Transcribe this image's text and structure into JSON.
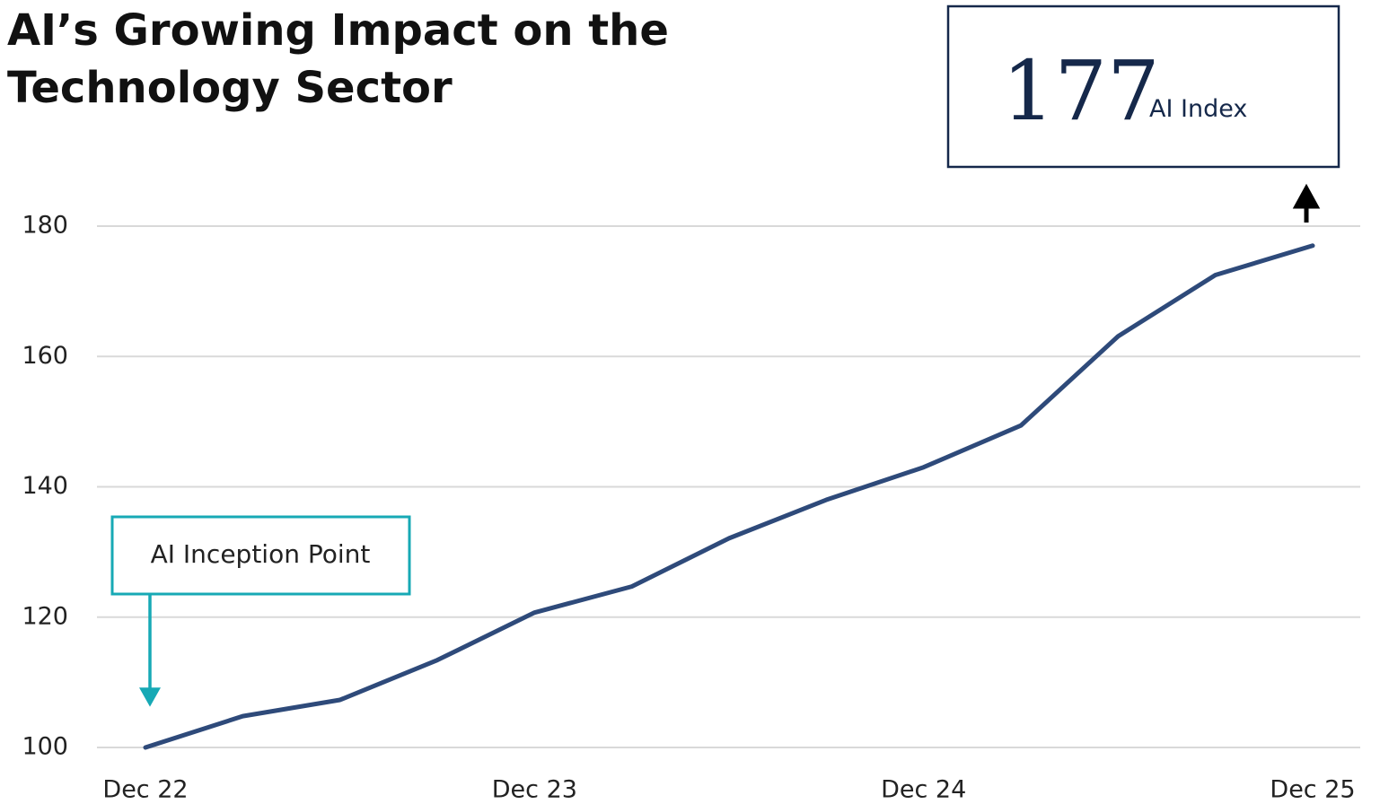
{
  "chart_data": {
    "type": "line",
    "title": "AI’s Growing Impact on the Technology Sector",
    "categories": [
      "Dec 22",
      null,
      null,
      null,
      "Dec 23",
      null,
      null,
      null,
      "Dec 24",
      null,
      null,
      null,
      "Dec 25"
    ],
    "series": [
      {
        "name": "AI Index",
        "color": "#2e4a7a",
        "values": [
          100,
          104.8,
          107.3,
          113.4,
          120.7,
          124.7,
          132.1,
          138.0,
          143.0,
          149.4,
          163.1,
          172.5,
          177
        ]
      }
    ],
    "ylim": [
      100,
      180
    ],
    "yticks": [
      100,
      120,
      140,
      160,
      180
    ],
    "grid": true,
    "annotations": [
      {
        "text": "AI Inception Point",
        "color": "#17a9b5"
      },
      {
        "value": 177,
        "text": "AI Index",
        "color": "#15284a"
      }
    ]
  }
}
